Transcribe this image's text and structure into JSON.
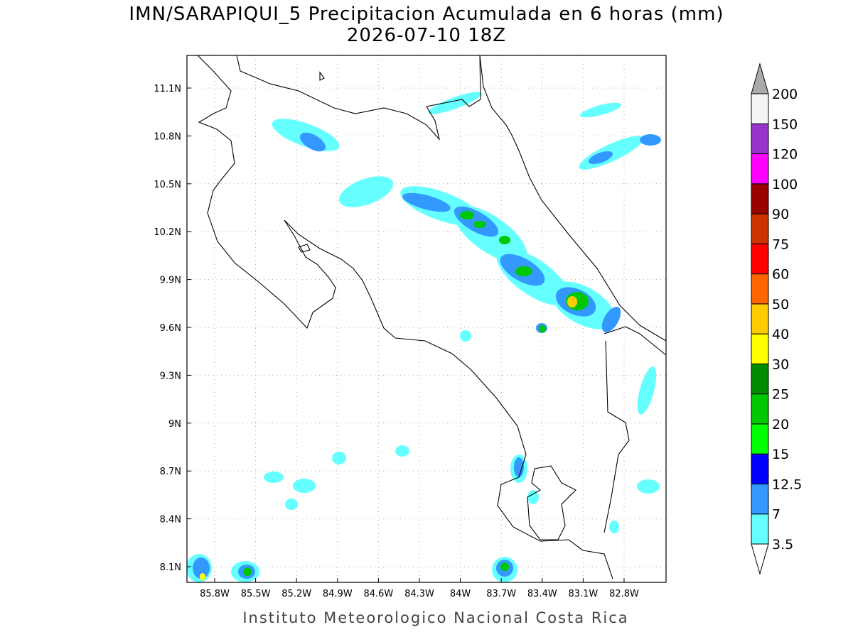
{
  "header": {
    "title": "IMN/SARAPIQUI_5 Precipitacion Acumulada en 6 horas (mm)",
    "subtitle": "2026-07-10 18Z"
  },
  "map": {
    "lat_ticks": [
      "11.1N",
      "10.8N",
      "10.5N",
      "10.2N",
      "9.9N",
      "9.6N",
      "9.3N",
      "9N",
      "8.7N",
      "8.4N",
      "8.1N"
    ],
    "lon_ticks": [
      "85.8W",
      "85.5W",
      "85.2W",
      "84.9W",
      "84.6W",
      "84.3W",
      "84W",
      "83.7W",
      "83.4W",
      "83.1W",
      "82.8W"
    ],
    "grid": true
  },
  "colorbar": {
    "levels": [
      3.5,
      7,
      12.5,
      15,
      20,
      25,
      30,
      40,
      50,
      60,
      75,
      90,
      100,
      120,
      150,
      200
    ],
    "colors": [
      "#66ffff",
      "#3399ff",
      "#0000ff",
      "#00ff00",
      "#00c800",
      "#008c00",
      "#ffff00",
      "#ffcc00",
      "#ff6600",
      "#ff0000",
      "#cc3300",
      "#990000",
      "#ff00ff",
      "#9933cc",
      "#f5f5f5"
    ],
    "under_color": "#ffffff",
    "over_color": "#aaaaaa"
  },
  "footer": "Instituto Meteorologico Nacional Costa Rica"
}
